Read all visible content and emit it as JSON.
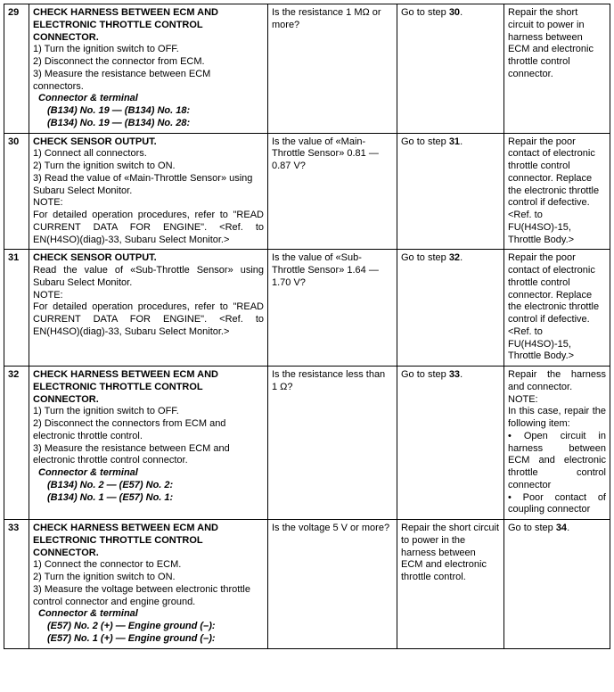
{
  "rows": [
    {
      "num": "29",
      "title": "CHECK HARNESS BETWEEN ECM AND ELECTRONIC THROTTLE CONTROL CONNECTOR.",
      "steps": [
        "1)   Turn the ignition switch to OFF.",
        "2)   Disconnect the connector from ECM.",
        "3)   Measure the resistance between ECM connectors."
      ],
      "conn_label": "Connector & terminal",
      "conns": [
        "(B134) No. 19 — (B134) No. 18:",
        "(B134) No. 19 — (B134) No. 28:"
      ],
      "check": "Is the resistance 1 MΩ or more?",
      "yes_pre": "Go to step ",
      "yes_step": "30",
      "yes_post": ".",
      "no_text": "Repair the short circuit to power in harness between ECM and electronic throttle control connector."
    },
    {
      "num": "30",
      "title": "CHECK SENSOR OUTPUT.",
      "steps": [
        "1)   Connect all connectors.",
        "2)   Turn the ignition switch to ON.",
        "3)   Read the value of «Main-Throttle Sensor» using Subaru Select Monitor."
      ],
      "note_label": "NOTE:",
      "note_text": "For detailed operation procedures, refer to \"READ CURRENT DATA FOR ENGINE\". <Ref. to EN(H4SO)(diag)-33, Subaru Select Monitor.>",
      "check": "Is the value of «Main-Throttle Sensor» 0.81 — 0.87 V?",
      "yes_pre": "Go to step ",
      "yes_step": "31",
      "yes_post": ".",
      "no_text": "Repair the poor contact of electronic throttle control connector. Replace the electronic throttle control if defective. <Ref. to FU(H4SO)-15, Throttle Body.>"
    },
    {
      "num": "31",
      "title": "CHECK SENSOR OUTPUT.",
      "body_text": "Read the value of «Sub-Throttle Sensor» using Subaru Select Monitor.",
      "note_label": "NOTE:",
      "note_text": "For detailed operation procedures, refer to \"READ CURRENT DATA FOR ENGINE\". <Ref. to EN(H4SO)(diag)-33, Subaru Select Monitor.>",
      "check": "Is the value of «Sub-Throttle Sensor» 1.64 — 1.70 V?",
      "yes_pre": "Go to step ",
      "yes_step": "32",
      "yes_post": ".",
      "no_text": "Repair the poor contact of electronic throttle control connector. Replace the electronic throttle control if defective. <Ref. to FU(H4SO)-15, Throttle Body.>"
    },
    {
      "num": "32",
      "title": "CHECK HARNESS BETWEEN ECM AND ELECTRONIC THROTTLE CONTROL CONNECTOR.",
      "steps": [
        "1)   Turn the ignition switch to OFF.",
        "2)   Disconnect the connectors from ECM and electronic throttle control.",
        "3)   Measure the resistance between ECM and electronic throttle control connector."
      ],
      "conn_label": "Connector & terminal",
      "conns": [
        "(B134) No. 2 — (E57) No. 2:",
        "(B134) No. 1 — (E57) No. 1:"
      ],
      "check": "Is the resistance less than 1 Ω?",
      "yes_pre": "Go to step ",
      "yes_step": "33",
      "yes_post": ".",
      "no_intro": "Repair the harness and connector.",
      "no_note_label": "NOTE:",
      "no_note_intro": "In this case, repair the following item:",
      "no_bullets": [
        "• Open circuit in harness between ECM and electronic throttle control connector",
        "• Poor contact of coupling connector"
      ]
    },
    {
      "num": "33",
      "title": "CHECK HARNESS BETWEEN ECM AND ELECTRONIC THROTTLE CONTROL CONNECTOR.",
      "steps": [
        "1)   Connect the connector to ECM.",
        "2)   Turn the ignition switch to ON.",
        "3)   Measure the voltage between electronic throttle control connector and engine ground."
      ],
      "conn_label": "Connector & terminal",
      "conns": [
        "(E57) No. 2 (+) — Engine ground (–):",
        "(E57) No. 1 (+) — Engine ground (–):"
      ],
      "check": "Is the voltage 5 V or more?",
      "yes_text": "Repair the short circuit to power in the harness between ECM and electronic throttle control.",
      "no_pre": "Go to step ",
      "no_step": "34",
      "no_post": "."
    }
  ]
}
